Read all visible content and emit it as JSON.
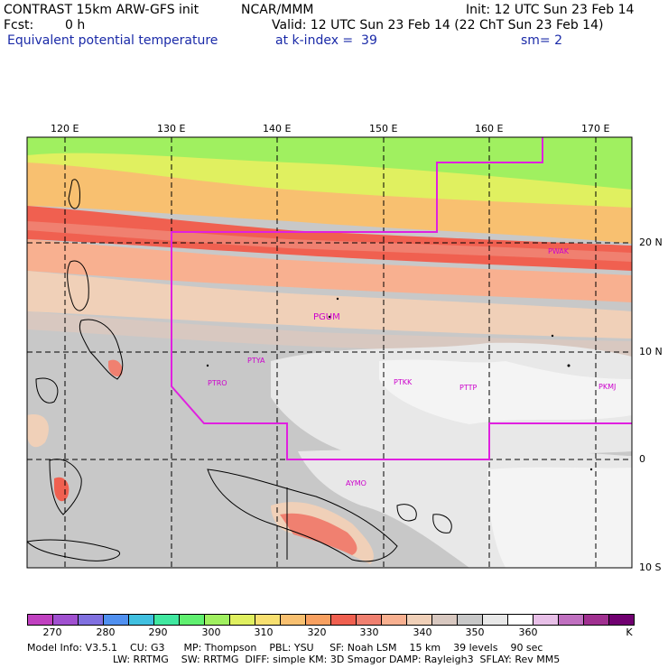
{
  "header": {
    "model": "CONTRAST 15km ARW-GFS init",
    "org": "NCAR/MMM",
    "init": "Init: 12 UTC Sun 23 Feb 14",
    "fcst_label": "Fcst:",
    "fcst_value": "0 h",
    "valid": "Valid: 12 UTC Sun 23 Feb 14 (22 ChT Sun 23 Feb 14)",
    "field": "Equivalent potential temperature",
    "level": "at k-index =  39",
    "smooth": "sm= 2"
  },
  "map": {
    "lon_labels": [
      "120 E",
      "130 E",
      "140 E",
      "150 E",
      "160 E",
      "170 E"
    ],
    "lat_labels": [
      "20 N",
      "10 N",
      "0",
      "10 S"
    ],
    "stations": [
      "PWAK",
      "PGUM",
      "PTYA",
      "PTRO",
      "PTKK",
      "PTTP",
      "PKMJ",
      "AYMO"
    ],
    "colors": {
      "boundary": "#e020e0",
      "station": "#cc00cc"
    }
  },
  "colorbar": {
    "ticks": [
      "270",
      "280",
      "290",
      "300",
      "310",
      "320",
      "330",
      "340",
      "350",
      "360"
    ],
    "unit": "K",
    "colors": [
      "#c040c0",
      "#a050d0",
      "#8070e0",
      "#5090f0",
      "#40c0e0",
      "#40e8a0",
      "#60f070",
      "#a0f060",
      "#e0f060",
      "#f8e070",
      "#f8c070",
      "#f8a060",
      "#f06050",
      "#f08070",
      "#f8b090",
      "#f0d0b8",
      "#d8c8c0",
      "#c8c8c8",
      "#e8e8e8",
      "#ffffff",
      "#e8c0e8",
      "#c070c0",
      "#a03090",
      "#700070"
    ]
  },
  "footer": {
    "line1": "Model Info: V3.5.1    CU: G3      MP: Thompson    PBL: YSU     SF: Noah LSM    15 km    39 levels    90 sec",
    "line2": "LW: RRTMG    SW: RRTMG  DIFF: simple KM: 3D Smagor DAMP: Rayleigh3  SFLAY: Rev MM5"
  }
}
